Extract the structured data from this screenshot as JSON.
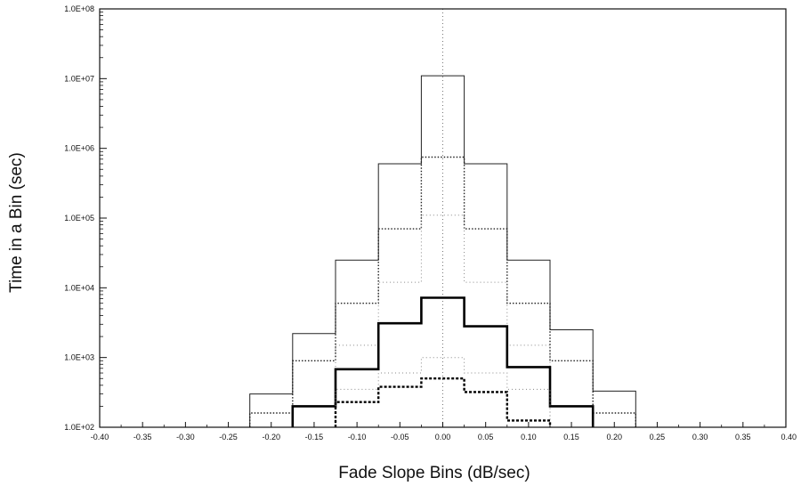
{
  "chart_data": {
    "type": "line",
    "title": "",
    "xlabel": "Fade Slope Bins (dB/sec)",
    "ylabel": "Time in a Bin (sec)",
    "xlim": [
      -0.4,
      0.4
    ],
    "ylim": [
      100,
      100000000
    ],
    "yscale": "log",
    "grid": "center vertical dotted line at 0.00",
    "x_tick_labels": [
      "-0.40",
      "-0.35",
      "-0.30",
      "-0.25",
      "-0.20",
      "-0.15",
      "-0.10",
      "-0.05",
      "0.00",
      "0.05",
      "0.10",
      "0.15",
      "0.20",
      "0.25",
      "0.30",
      "0.35",
      "0.40"
    ],
    "y_tick_labels": [
      "1.0E+02",
      "1.0E+03",
      "1.0E+04",
      "1.0E+05",
      "1.0E+06",
      "1.0E+07",
      "1.0E+08"
    ],
    "bin_edges": [
      -0.225,
      -0.175,
      -0.125,
      -0.075,
      -0.025,
      0.025,
      0.075,
      0.125,
      0.175,
      0.225
    ],
    "series": [
      {
        "style": "thin-solid",
        "color": "#222222",
        "values": [
          300,
          2200,
          25000,
          600000,
          11000000,
          600000,
          25000,
          2500,
          330
        ]
      },
      {
        "style": "thin-dotted",
        "color": "#222222",
        "values": [
          160,
          900,
          6000,
          70000,
          750000,
          70000,
          6000,
          900,
          160
        ]
      },
      {
        "style": "faint-dotted",
        "color": "#888888",
        "values": [
          null,
          null,
          1500,
          12000,
          110000,
          12000,
          1500,
          null,
          null
        ]
      },
      {
        "style": "thick-solid",
        "color": "#000000",
        "values": [
          null,
          200,
          680,
          3100,
          7200,
          2800,
          730,
          200,
          null
        ]
      },
      {
        "style": "faint-dotted",
        "color": "#888888",
        "values": [
          null,
          null,
          350,
          600,
          1000,
          600,
          350,
          null,
          null
        ]
      },
      {
        "style": "thick-dashed",
        "color": "#000000",
        "values": [
          null,
          null,
          230,
          380,
          500,
          320,
          125,
          null,
          null
        ]
      }
    ]
  }
}
